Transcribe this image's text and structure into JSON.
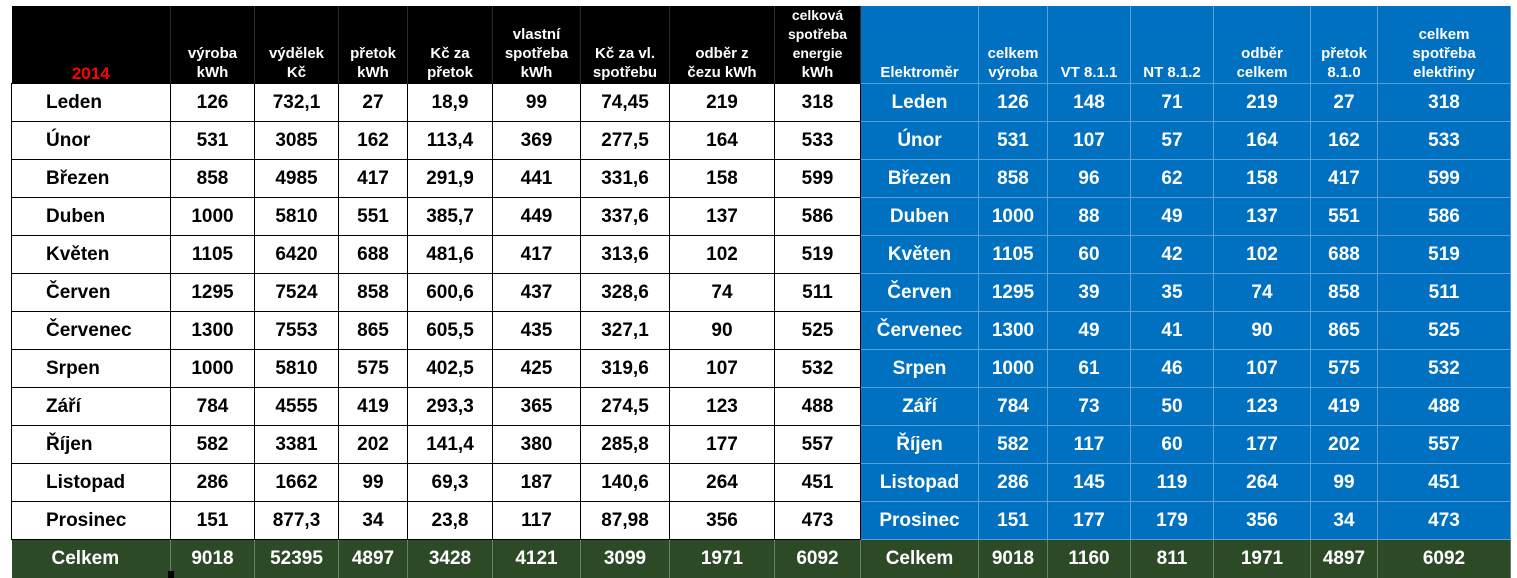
{
  "year": "2014",
  "headers": {
    "left": [
      [
        "výroba",
        "kWh"
      ],
      [
        "výdělek",
        "Kč"
      ],
      [
        "přetok",
        "kWh"
      ],
      [
        "Kč za",
        "přetok"
      ],
      [
        "vlastní",
        "spotřeba",
        "kWh"
      ],
      [
        "Kč za vl.",
        "spotřebu"
      ],
      [
        "odběr z",
        "čezu kWh"
      ],
      [
        "celková",
        "spotřeba",
        "energie",
        "kWh"
      ]
    ],
    "right": [
      [
        "Elektroměr"
      ],
      [
        "celkem",
        "výroba"
      ],
      [
        "VT 8.1.1"
      ],
      [
        "NT 8.1.2"
      ],
      [
        "odběr",
        "celkem"
      ],
      [
        "přetok",
        "8.1.0"
      ],
      [
        "celkem",
        "spotřeba",
        "elektřiny"
      ]
    ]
  },
  "rows": [
    {
      "month": "Leden",
      "left": [
        "126",
        "732,1",
        "27",
        "18,9",
        "99",
        "74,45",
        "219",
        "318"
      ],
      "right": [
        "Leden",
        "126",
        "148",
        "71",
        "219",
        "27",
        "318"
      ]
    },
    {
      "month": "Únor",
      "left": [
        "531",
        "3085",
        "162",
        "113,4",
        "369",
        "277,5",
        "164",
        "533"
      ],
      "right": [
        "Únor",
        "531",
        "107",
        "57",
        "164",
        "162",
        "533"
      ]
    },
    {
      "month": "Březen",
      "left": [
        "858",
        "4985",
        "417",
        "291,9",
        "441",
        "331,6",
        "158",
        "599"
      ],
      "right": [
        "Březen",
        "858",
        "96",
        "62",
        "158",
        "417",
        "599"
      ]
    },
    {
      "month": "Duben",
      "left": [
        "1000",
        "5810",
        "551",
        "385,7",
        "449",
        "337,6",
        "137",
        "586"
      ],
      "right": [
        "Duben",
        "1000",
        "88",
        "49",
        "137",
        "551",
        "586"
      ]
    },
    {
      "month": "Květen",
      "left": [
        "1105",
        "6420",
        "688",
        "481,6",
        "417",
        "313,6",
        "102",
        "519"
      ],
      "right": [
        "Květen",
        "1105",
        "60",
        "42",
        "102",
        "688",
        "519"
      ]
    },
    {
      "month": "Červen",
      "left": [
        "1295",
        "7524",
        "858",
        "600,6",
        "437",
        "328,6",
        "74",
        "511"
      ],
      "right": [
        "Červen",
        "1295",
        "39",
        "35",
        "74",
        "858",
        "511"
      ]
    },
    {
      "month": "Červenec",
      "left": [
        "1300",
        "7553",
        "865",
        "605,5",
        "435",
        "327,1",
        "90",
        "525"
      ],
      "right": [
        "Červenec",
        "1300",
        "49",
        "41",
        "90",
        "865",
        "525"
      ]
    },
    {
      "month": "Srpen",
      "left": [
        "1000",
        "5810",
        "575",
        "402,5",
        "425",
        "319,6",
        "107",
        "532"
      ],
      "right": [
        "Srpen",
        "1000",
        "61",
        "46",
        "107",
        "575",
        "532"
      ]
    },
    {
      "month": "Září",
      "left": [
        "784",
        "4555",
        "419",
        "293,3",
        "365",
        "274,5",
        "123",
        "488"
      ],
      "right": [
        "Září",
        "784",
        "73",
        "50",
        "123",
        "419",
        "488"
      ]
    },
    {
      "month": "Říjen",
      "left": [
        "582",
        "3381",
        "202",
        "141,4",
        "380",
        "285,8",
        "177",
        "557"
      ],
      "right": [
        "Říjen",
        "582",
        "117",
        "60",
        "177",
        "202",
        "557"
      ]
    },
    {
      "month": "Listopad",
      "left": [
        "286",
        "1662",
        "99",
        "69,3",
        "187",
        "140,6",
        "264",
        "451"
      ],
      "right": [
        "Listopad",
        "286",
        "145",
        "119",
        "264",
        "99",
        "451"
      ]
    },
    {
      "month": "Prosinec",
      "left": [
        "151",
        "877,3",
        "34",
        "23,8",
        "117",
        "87,98",
        "356",
        "473"
      ],
      "right": [
        "Prosinec",
        "151",
        "177",
        "179",
        "356",
        "34",
        "473"
      ]
    }
  ],
  "total": {
    "month": "Celkem",
    "left": [
      "9018",
      "52395",
      "4897",
      "3428",
      "4121",
      "3099",
      "1971",
      "6092"
    ],
    "right": [
      "Celkem",
      "9018",
      "1160",
      "811",
      "1971",
      "4897",
      "6092"
    ]
  },
  "colors": {
    "header_black": "#000000",
    "meter_blue": "#0070c0",
    "total_green": "#2d4a26",
    "year_red": "#ff0000"
  }
}
